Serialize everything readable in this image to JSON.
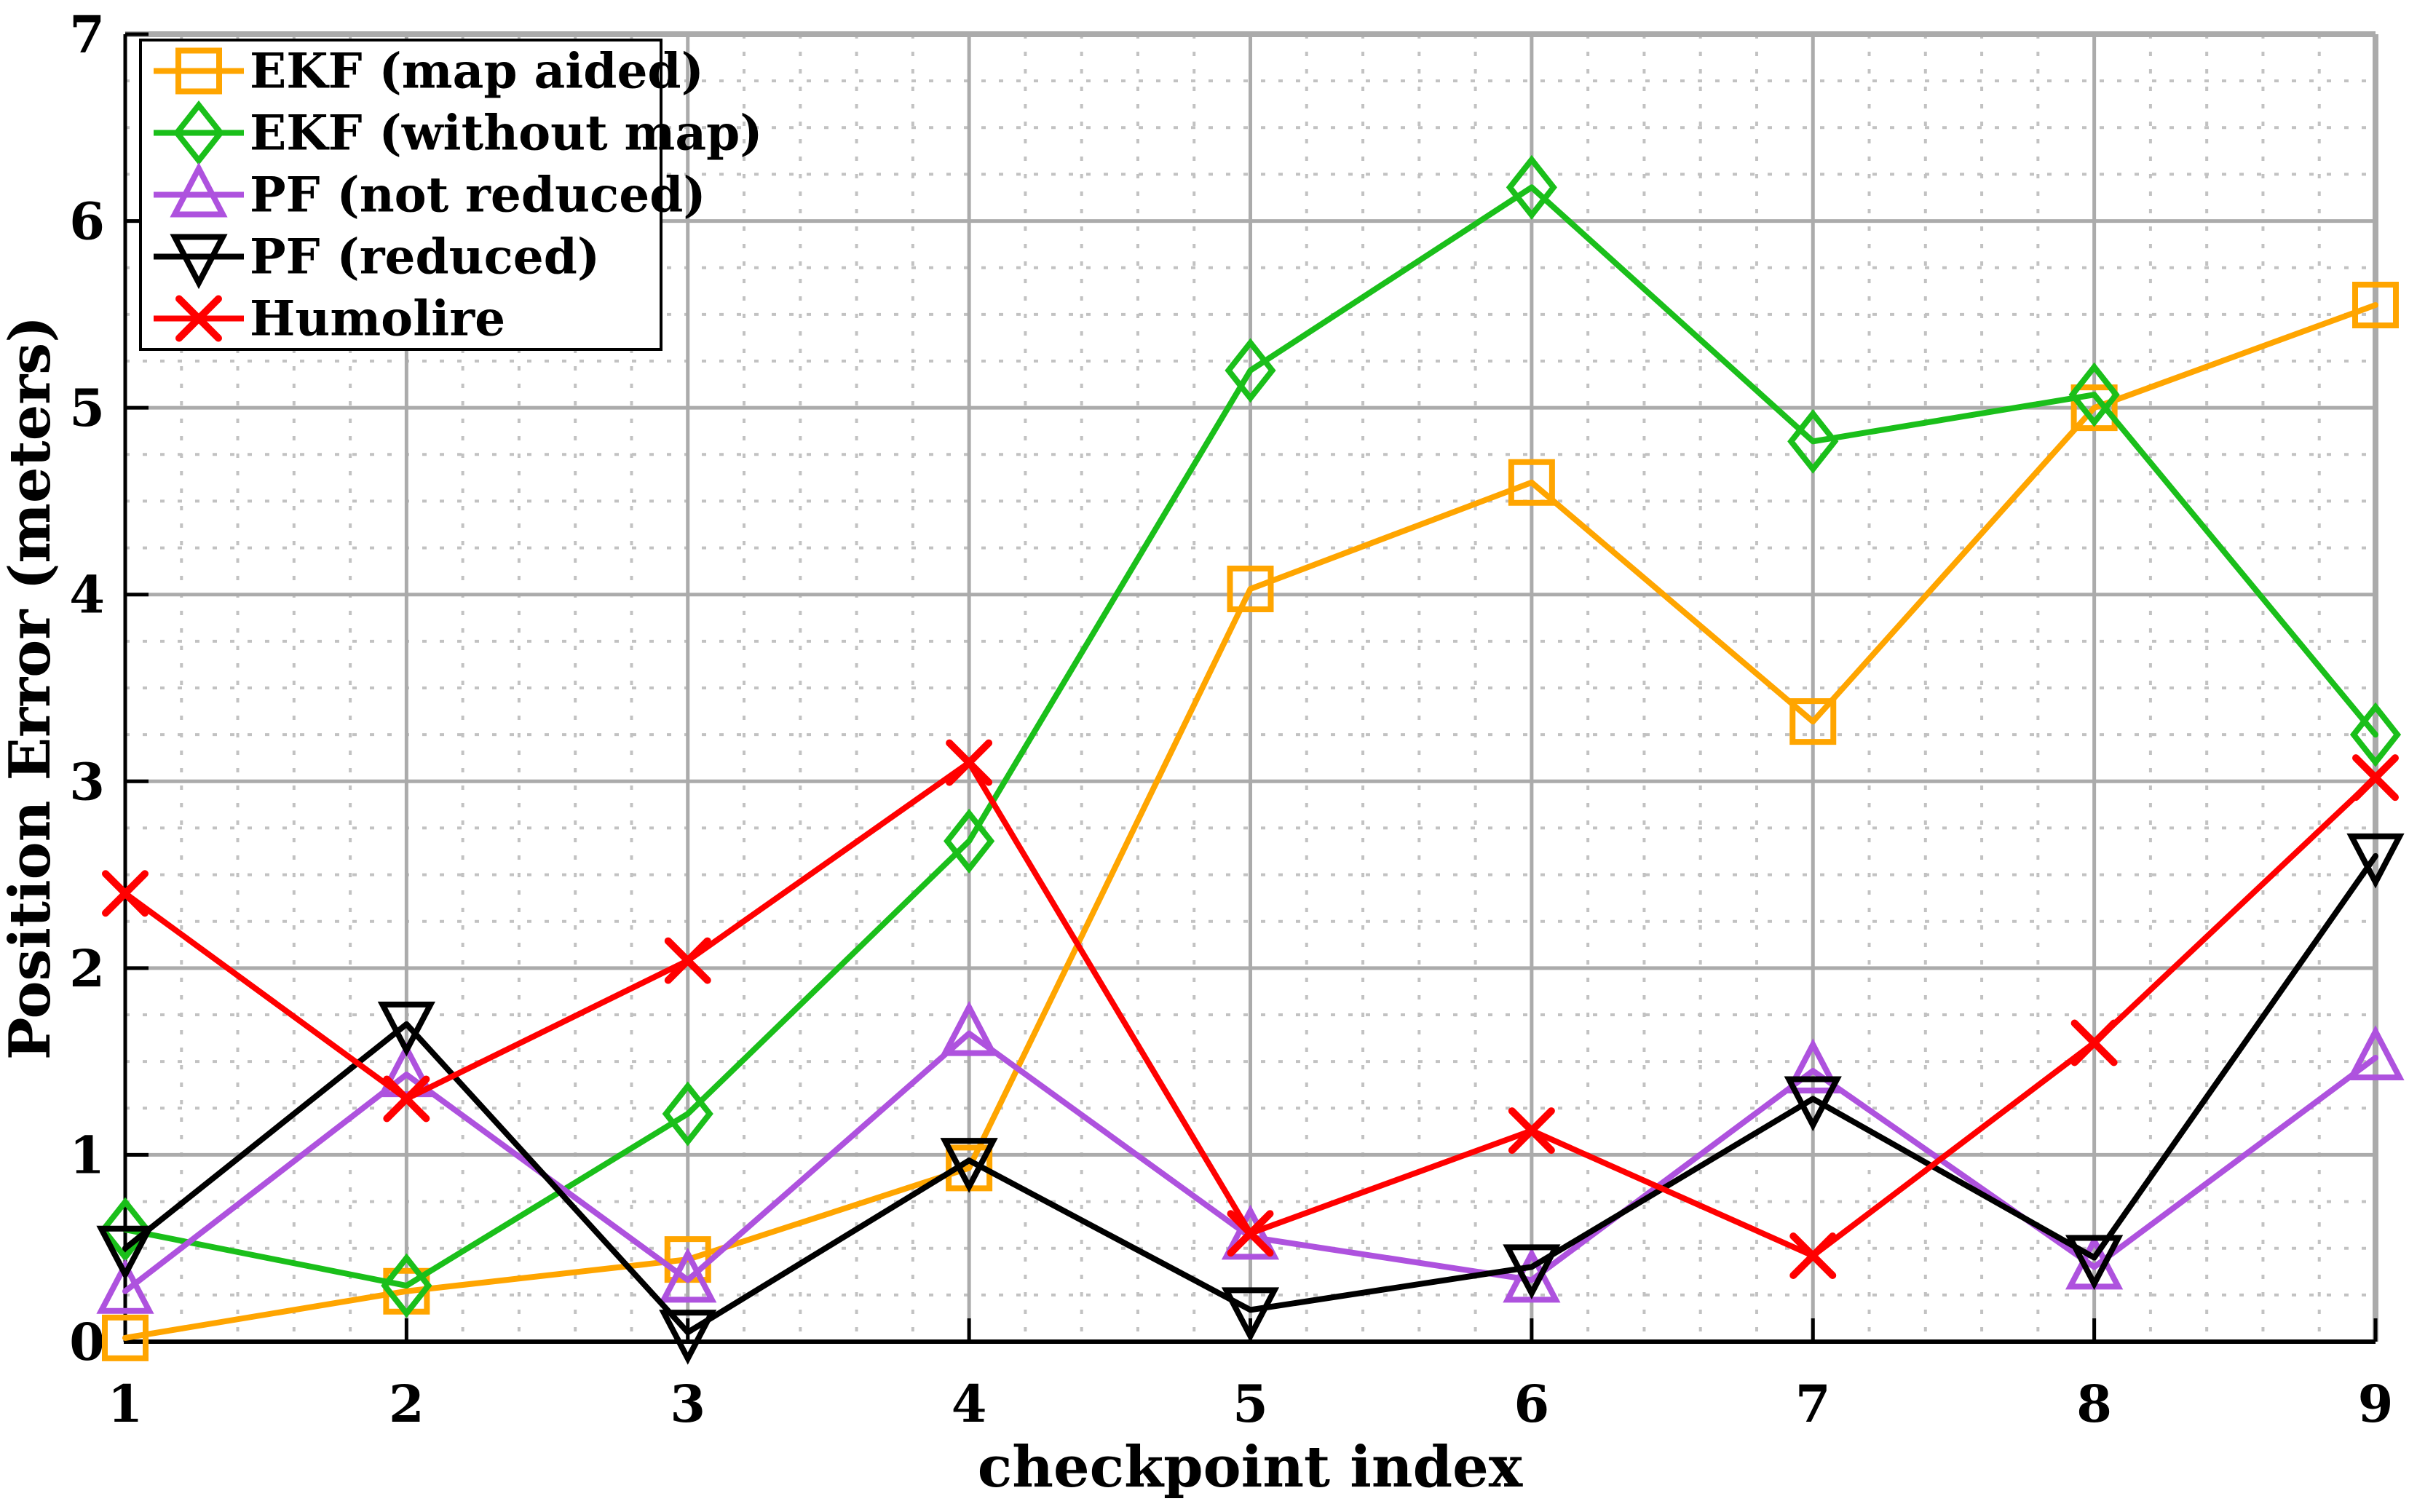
{
  "figure": {
    "xlabel": "checkpoint index",
    "ylabel": "Position Error (meters)",
    "x_tick_labels": [
      "1",
      "2",
      "3",
      "4",
      "5",
      "6",
      "7",
      "8",
      "9"
    ],
    "y_tick_labels": [
      "0",
      "1",
      "2",
      "3",
      "4",
      "5",
      "6",
      "7"
    ]
  },
  "chart_data": {
    "type": "line",
    "title": "",
    "xlabel": "checkpoint index",
    "ylabel": "Position Error (meters)",
    "x": [
      1,
      2,
      3,
      4,
      5,
      6,
      7,
      8,
      9
    ],
    "xlim": [
      1,
      9
    ],
    "ylim": [
      0,
      7
    ],
    "x_ticks": [
      1,
      2,
      3,
      4,
      5,
      6,
      7,
      8,
      9
    ],
    "y_ticks": [
      0,
      1,
      2,
      3,
      4,
      5,
      6,
      7
    ],
    "grid": "major solid gray + minor dotted (x step 0.2, y step 0.25)",
    "legend_position": "top-left",
    "series": [
      {
        "name": "EKF (map aided)",
        "color": "#FFA500",
        "marker": "square",
        "values": [
          0.02,
          0.27,
          0.44,
          0.93,
          4.03,
          4.6,
          3.32,
          5.0,
          5.55
        ]
      },
      {
        "name": "EKF (without map)",
        "color": "#1ABF1A",
        "marker": "diamond",
        "values": [
          0.6,
          0.3,
          1.22,
          2.68,
          5.2,
          6.18,
          4.82,
          5.07,
          3.25
        ]
      },
      {
        "name": "PF (not reduced)",
        "color": "#AE52DE",
        "marker": "triangle-up",
        "values": [
          0.27,
          1.43,
          0.33,
          1.65,
          0.56,
          0.33,
          1.45,
          0.4,
          1.52
        ]
      },
      {
        "name": "PF (reduced)",
        "color": "#000000",
        "marker": "triangle-down",
        "values": [
          0.5,
          1.7,
          0.05,
          0.97,
          0.17,
          0.4,
          1.3,
          0.45,
          2.6
        ]
      },
      {
        "name": "Humolire",
        "color": "#FF0000",
        "marker": "x",
        "values": [
          2.4,
          1.3,
          2.04,
          3.1,
          0.58,
          1.13,
          0.46,
          1.6,
          3.02
        ]
      }
    ],
    "colors": {
      "major_grid": "#ABABAB",
      "minor_grid": "#C2C2C2",
      "axis": "#000000",
      "plot_border": "#ABABAB",
      "background": "#FFFFFF",
      "legend_border": "#000000",
      "legend_background": "#FFFFFF"
    }
  }
}
